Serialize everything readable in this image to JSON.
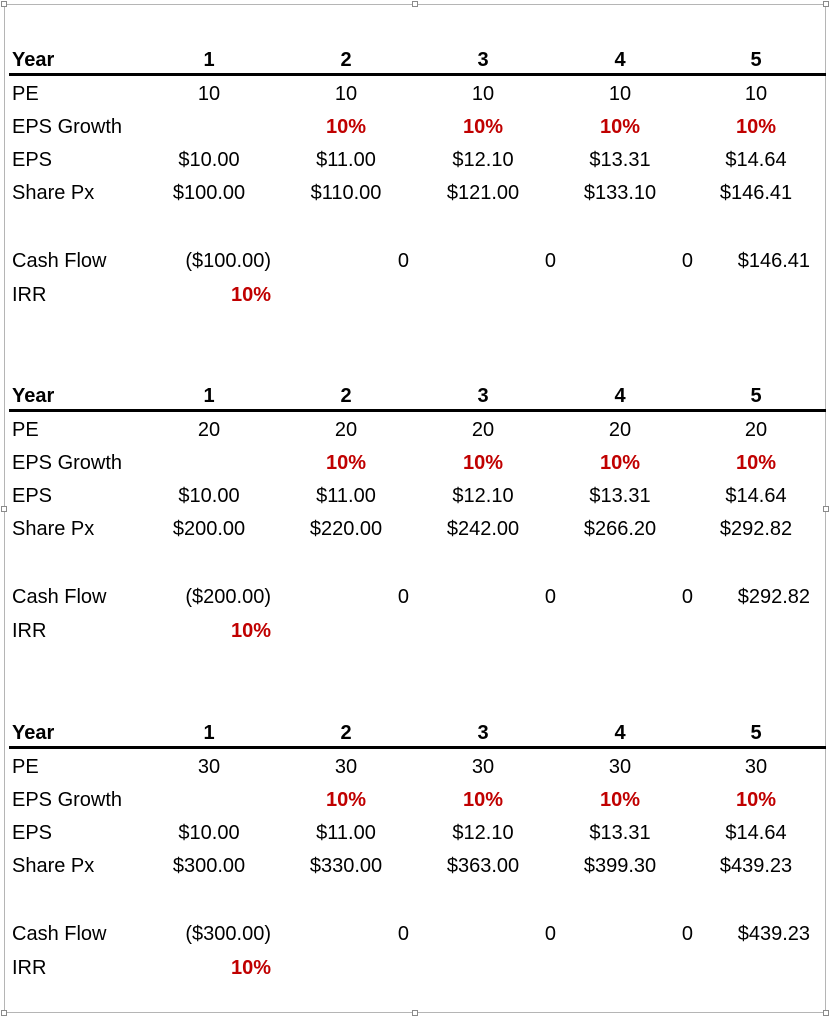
{
  "labels": {
    "year": "Year",
    "pe": "PE",
    "eps_growth": "EPS Growth",
    "eps": "EPS",
    "share_px": "Share Px",
    "cash_flow": "Cash Flow",
    "irr": "IRR"
  },
  "accent_color": "#c00000",
  "years": [
    "1",
    "2",
    "3",
    "4",
    "5"
  ],
  "eps_growth": [
    "10%",
    "10%",
    "10%",
    "10%"
  ],
  "eps": [
    "$10.00",
    "$11.00",
    "$12.10",
    "$13.31",
    "$14.64"
  ],
  "blocks": [
    {
      "pe": [
        "10",
        "10",
        "10",
        "10",
        "10"
      ],
      "share_px": [
        "$100.00",
        "$110.00",
        "$121.00",
        "$133.10",
        "$146.41"
      ],
      "cash_flow": [
        "($100.00)",
        "0",
        "0",
        "0",
        "$146.41"
      ],
      "irr": "10%"
    },
    {
      "pe": [
        "20",
        "20",
        "20",
        "20",
        "20"
      ],
      "share_px": [
        "$200.00",
        "$220.00",
        "$242.00",
        "$266.20",
        "$292.82"
      ],
      "cash_flow": [
        "($200.00)",
        "0",
        "0",
        "0",
        "$292.82"
      ],
      "irr": "10%"
    },
    {
      "pe": [
        "30",
        "30",
        "30",
        "30",
        "30"
      ],
      "share_px": [
        "$300.00",
        "$330.00",
        "$363.00",
        "$399.30",
        "$439.23"
      ],
      "cash_flow": [
        "($300.00)",
        "0",
        "0",
        "0",
        "$439.23"
      ],
      "irr": "10%"
    }
  ]
}
